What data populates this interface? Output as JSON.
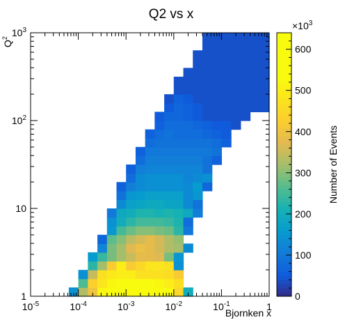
{
  "chart_data": {
    "type": "heatmap",
    "title": "Q2 vs x",
    "xlabel": "Bjornken x",
    "ylabel_base": "Q",
    "ylabel_sup": "2",
    "x_log": true,
    "y_log": true,
    "x_range": [
      1e-05,
      1
    ],
    "y_range": [
      1,
      1000
    ],
    "x_ticks": [
      {
        "value": 1e-05,
        "base": "10",
        "exp": "-5"
      },
      {
        "value": 0.0001,
        "base": "10",
        "exp": "-4"
      },
      {
        "value": 0.001,
        "base": "10",
        "exp": "-3"
      },
      {
        "value": 0.01,
        "base": "10",
        "exp": "-2"
      },
      {
        "value": 0.1,
        "base": "10",
        "exp": "-1"
      },
      {
        "value": 1,
        "base": "1",
        "exp": ""
      }
    ],
    "y_ticks": [
      {
        "value": 1,
        "base": "1",
        "exp": ""
      },
      {
        "value": 10,
        "base": "10",
        "exp": ""
      },
      {
        "value": 100,
        "base": "10",
        "exp": "2"
      },
      {
        "value": 1000,
        "base": "10",
        "exp": "3"
      }
    ],
    "colorbar": {
      "label": "Number of Events",
      "multiplier_base": "×10",
      "multiplier_exp": "3",
      "min": 0,
      "max": 640,
      "ticks": [
        0,
        100,
        200,
        300,
        400,
        500,
        600
      ]
    },
    "grid": false,
    "bins": {
      "x_log_min": -5,
      "x_log_max": 0,
      "x_count": 25,
      "y_log_min": 0,
      "y_log_max": 3,
      "y_count": 30
    },
    "cells": [
      [
        0,
        [
          [
            4,
            145
          ],
          [
            5,
            330
          ],
          [
            6,
            400
          ],
          [
            7,
            520
          ],
          [
            8,
            600
          ],
          [
            9,
            630
          ],
          [
            10,
            630
          ],
          [
            11,
            630
          ],
          [
            12,
            630
          ],
          [
            13,
            630
          ],
          [
            14,
            580
          ],
          [
            15,
            450
          ],
          [
            16,
            200
          ]
        ]
      ],
      [
        1,
        [
          [
            5,
            260
          ],
          [
            6,
            430
          ],
          [
            7,
            480
          ],
          [
            8,
            520
          ],
          [
            9,
            560
          ],
          [
            10,
            560
          ],
          [
            11,
            540
          ],
          [
            12,
            540
          ],
          [
            13,
            520
          ],
          [
            14,
            500
          ],
          [
            15,
            470
          ]
        ]
      ],
      [
        2,
        [
          [
            5,
            140
          ],
          [
            6,
            350
          ],
          [
            7,
            470
          ],
          [
            8,
            490
          ],
          [
            9,
            500
          ],
          [
            10,
            500
          ],
          [
            11,
            470
          ],
          [
            12,
            470
          ],
          [
            13,
            470
          ],
          [
            14,
            460
          ],
          [
            15,
            420
          ]
        ]
      ],
      [
        3,
        [
          [
            6,
            230
          ],
          [
            7,
            320
          ],
          [
            8,
            420
          ],
          [
            9,
            500
          ],
          [
            10,
            420
          ],
          [
            11,
            450
          ],
          [
            12,
            480
          ],
          [
            13,
            480
          ],
          [
            14,
            470
          ],
          [
            15,
            140
          ]
        ]
      ],
      [
        4,
        [
          [
            6,
            160
          ],
          [
            7,
            240
          ],
          [
            8,
            290
          ],
          [
            9,
            320
          ],
          [
            10,
            350
          ],
          [
            11,
            380
          ],
          [
            12,
            380
          ],
          [
            13,
            370
          ],
          [
            14,
            290
          ],
          [
            15,
            150
          ]
        ]
      ],
      [
        5,
        [
          [
            7,
            120
          ],
          [
            8,
            290
          ],
          [
            9,
            320
          ],
          [
            10,
            370
          ],
          [
            11,
            390
          ],
          [
            12,
            380
          ],
          [
            13,
            360
          ],
          [
            14,
            330
          ],
          [
            15,
            320
          ],
          [
            16,
            130
          ]
        ]
      ],
      [
        6,
        [
          [
            7,
            70
          ],
          [
            8,
            270
          ],
          [
            9,
            300
          ],
          [
            10,
            340
          ],
          [
            11,
            360
          ],
          [
            12,
            380
          ],
          [
            13,
            360
          ],
          [
            14,
            330
          ],
          [
            15,
            310
          ]
        ]
      ],
      [
        7,
        [
          [
            8,
            150
          ],
          [
            9,
            250
          ],
          [
            10,
            280
          ],
          [
            11,
            300
          ],
          [
            12,
            300
          ],
          [
            13,
            290
          ],
          [
            14,
            280
          ],
          [
            15,
            230
          ],
          [
            16,
            100
          ]
        ]
      ],
      [
        8,
        [
          [
            8,
            140
          ],
          [
            9,
            200
          ],
          [
            10,
            230
          ],
          [
            11,
            250
          ],
          [
            12,
            250
          ],
          [
            13,
            250
          ],
          [
            14,
            240
          ],
          [
            15,
            220
          ],
          [
            16,
            80
          ]
        ]
      ],
      [
        9,
        [
          [
            8,
            100
          ],
          [
            9,
            190
          ],
          [
            10,
            200
          ],
          [
            11,
            220
          ],
          [
            12,
            220
          ],
          [
            13,
            210
          ],
          [
            14,
            220
          ],
          [
            15,
            210
          ],
          [
            16,
            190
          ],
          [
            17,
            110
          ]
        ]
      ],
      [
        10,
        [
          [
            9,
            130
          ],
          [
            10,
            170
          ],
          [
            11,
            180
          ],
          [
            12,
            190
          ],
          [
            13,
            190
          ],
          [
            14,
            180
          ],
          [
            15,
            180
          ],
          [
            16,
            130
          ],
          [
            17,
            90
          ]
        ]
      ],
      [
        11,
        [
          [
            9,
            90
          ],
          [
            10,
            150
          ],
          [
            11,
            160
          ],
          [
            12,
            170
          ],
          [
            13,
            170
          ],
          [
            14,
            170
          ],
          [
            15,
            170
          ],
          [
            16,
            130
          ],
          [
            17,
            150
          ]
        ]
      ],
      [
        12,
        [
          [
            9,
            60
          ],
          [
            10,
            110
          ],
          [
            11,
            130
          ],
          [
            12,
            140
          ],
          [
            13,
            140
          ],
          [
            14,
            140
          ],
          [
            15,
            140
          ],
          [
            16,
            130
          ],
          [
            17,
            160
          ],
          [
            18,
            70
          ]
        ]
      ],
      [
        13,
        [
          [
            10,
            80
          ],
          [
            11,
            130
          ],
          [
            12,
            140
          ],
          [
            13,
            140
          ],
          [
            14,
            140
          ],
          [
            15,
            140
          ],
          [
            16,
            120
          ],
          [
            17,
            130
          ],
          [
            18,
            140
          ]
        ]
      ],
      [
        14,
        [
          [
            10,
            60
          ],
          [
            11,
            110
          ],
          [
            12,
            120
          ],
          [
            13,
            120
          ],
          [
            14,
            120
          ],
          [
            15,
            120
          ],
          [
            16,
            120
          ],
          [
            17,
            120
          ],
          [
            18,
            90
          ]
        ]
      ],
      [
        15,
        [
          [
            11,
            80
          ],
          [
            12,
            110
          ],
          [
            13,
            110
          ],
          [
            14,
            110
          ],
          [
            15,
            110
          ],
          [
            16,
            110
          ],
          [
            17,
            110
          ],
          [
            18,
            90
          ],
          [
            19,
            60
          ]
        ]
      ],
      [
        16,
        [
          [
            11,
            60
          ],
          [
            12,
            100
          ],
          [
            13,
            100
          ],
          [
            14,
            100
          ],
          [
            15,
            100
          ],
          [
            16,
            100
          ],
          [
            17,
            100
          ],
          [
            18,
            100
          ],
          [
            19,
            90
          ]
        ]
      ],
      [
        17,
        [
          [
            12,
            80
          ],
          [
            13,
            90
          ],
          [
            14,
            90
          ],
          [
            15,
            90
          ],
          [
            16,
            90
          ],
          [
            17,
            90
          ],
          [
            18,
            90
          ],
          [
            19,
            80
          ],
          [
            20,
            60
          ]
        ]
      ],
      [
        18,
        [
          [
            12,
            60
          ],
          [
            13,
            80
          ],
          [
            14,
            90
          ],
          [
            15,
            80
          ],
          [
            16,
            80
          ],
          [
            17,
            80
          ],
          [
            18,
            70
          ],
          [
            19,
            60
          ],
          [
            20,
            50
          ]
        ]
      ],
      [
        19,
        [
          [
            13,
            60
          ],
          [
            14,
            80
          ],
          [
            15,
            80
          ],
          [
            16,
            80
          ],
          [
            17,
            70
          ],
          [
            18,
            60
          ],
          [
            19,
            50
          ],
          [
            20,
            50
          ],
          [
            21,
            40
          ]
        ]
      ],
      [
        20,
        [
          [
            13,
            50
          ],
          [
            14,
            70
          ],
          [
            15,
            70
          ],
          [
            16,
            60
          ],
          [
            17,
            50
          ],
          [
            18,
            40
          ],
          [
            19,
            40
          ],
          [
            20,
            40
          ],
          [
            21,
            40
          ],
          [
            22,
            40
          ]
        ]
      ],
      [
        21,
        [
          [
            14,
            50
          ],
          [
            15,
            70
          ],
          [
            16,
            60
          ],
          [
            17,
            50
          ],
          [
            18,
            40
          ],
          [
            19,
            40
          ],
          [
            20,
            40
          ],
          [
            21,
            40
          ],
          [
            22,
            40
          ],
          [
            23,
            40
          ],
          [
            24,
            40
          ]
        ]
      ],
      [
        22,
        [
          [
            14,
            40
          ],
          [
            15,
            60
          ],
          [
            16,
            50
          ],
          [
            17,
            40
          ],
          [
            18,
            40
          ],
          [
            19,
            40
          ],
          [
            20,
            40
          ],
          [
            21,
            40
          ],
          [
            22,
            40
          ],
          [
            23,
            40
          ],
          [
            24,
            40
          ]
        ]
      ],
      [
        23,
        [
          [
            15,
            40
          ],
          [
            16,
            40
          ],
          [
            17,
            40
          ],
          [
            18,
            40
          ],
          [
            19,
            40
          ],
          [
            20,
            40
          ],
          [
            21,
            40
          ],
          [
            22,
            40
          ],
          [
            23,
            40
          ],
          [
            24,
            40
          ]
        ]
      ],
      [
        24,
        [
          [
            15,
            40
          ],
          [
            16,
            40
          ],
          [
            17,
            40
          ],
          [
            18,
            40
          ],
          [
            19,
            40
          ],
          [
            20,
            40
          ],
          [
            21,
            40
          ],
          [
            22,
            40
          ],
          [
            23,
            40
          ],
          [
            24,
            40
          ]
        ]
      ],
      [
        25,
        [
          [
            16,
            40
          ],
          [
            17,
            40
          ],
          [
            18,
            40
          ],
          [
            19,
            40
          ],
          [
            20,
            40
          ],
          [
            21,
            40
          ],
          [
            22,
            40
          ],
          [
            23,
            40
          ],
          [
            24,
            40
          ]
        ]
      ],
      [
        26,
        [
          [
            17,
            40
          ],
          [
            18,
            40
          ],
          [
            19,
            40
          ],
          [
            20,
            40
          ],
          [
            21,
            40
          ],
          [
            22,
            40
          ],
          [
            23,
            40
          ],
          [
            24,
            40
          ]
        ]
      ],
      [
        27,
        [
          [
            17,
            40
          ],
          [
            18,
            40
          ],
          [
            19,
            40
          ],
          [
            20,
            40
          ],
          [
            21,
            40
          ],
          [
            22,
            40
          ],
          [
            23,
            40
          ],
          [
            24,
            40
          ]
        ]
      ],
      [
        28,
        [
          [
            18,
            40
          ],
          [
            19,
            40
          ],
          [
            20,
            40
          ],
          [
            21,
            40
          ],
          [
            22,
            40
          ],
          [
            23,
            40
          ],
          [
            24,
            40
          ]
        ]
      ],
      [
        29,
        [
          [
            18,
            40
          ],
          [
            19,
            40
          ],
          [
            20,
            40
          ],
          [
            21,
            40
          ],
          [
            22,
            40
          ],
          [
            23,
            40
          ],
          [
            24,
            40
          ]
        ]
      ]
    ]
  }
}
